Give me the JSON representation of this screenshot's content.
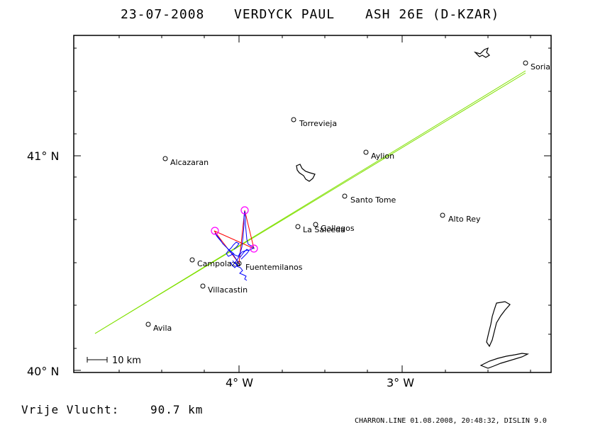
{
  "header": {
    "date": "23-07-2008",
    "pilot": "VERDYCK PAUL",
    "glider": "ASH 26E (D-KZAR)"
  },
  "axes": {
    "lat_labels": [
      "41° N",
      "40° N"
    ],
    "lon_labels": [
      "4° W",
      "3° W"
    ]
  },
  "towns": [
    {
      "name": "Soria"
    },
    {
      "name": "Torrevieja"
    },
    {
      "name": "Aylion"
    },
    {
      "name": "Alcazaran"
    },
    {
      "name": "Santo Tome"
    },
    {
      "name": "Alto Rey"
    },
    {
      "name": "La Salceda"
    },
    {
      "name": "Gallegos"
    },
    {
      "name": "Campolaza"
    },
    {
      "name": "Fuentemilanos"
    },
    {
      "name": "Villacastin"
    },
    {
      "name": "Avila"
    }
  ],
  "scale_bar": {
    "label": "10 km"
  },
  "footer": {
    "flight_label": "Vrije Vlucht:",
    "distance": "90.7 km",
    "software": "CHARRON.LINE 01.08.2008, 20:48:32, DISLIN 9.0"
  },
  "colors": {
    "track": "#0000ff",
    "task": "#ff0000",
    "turnpoint": "#ff00ff",
    "corridor": "#80e000",
    "frame": "#000000"
  }
}
